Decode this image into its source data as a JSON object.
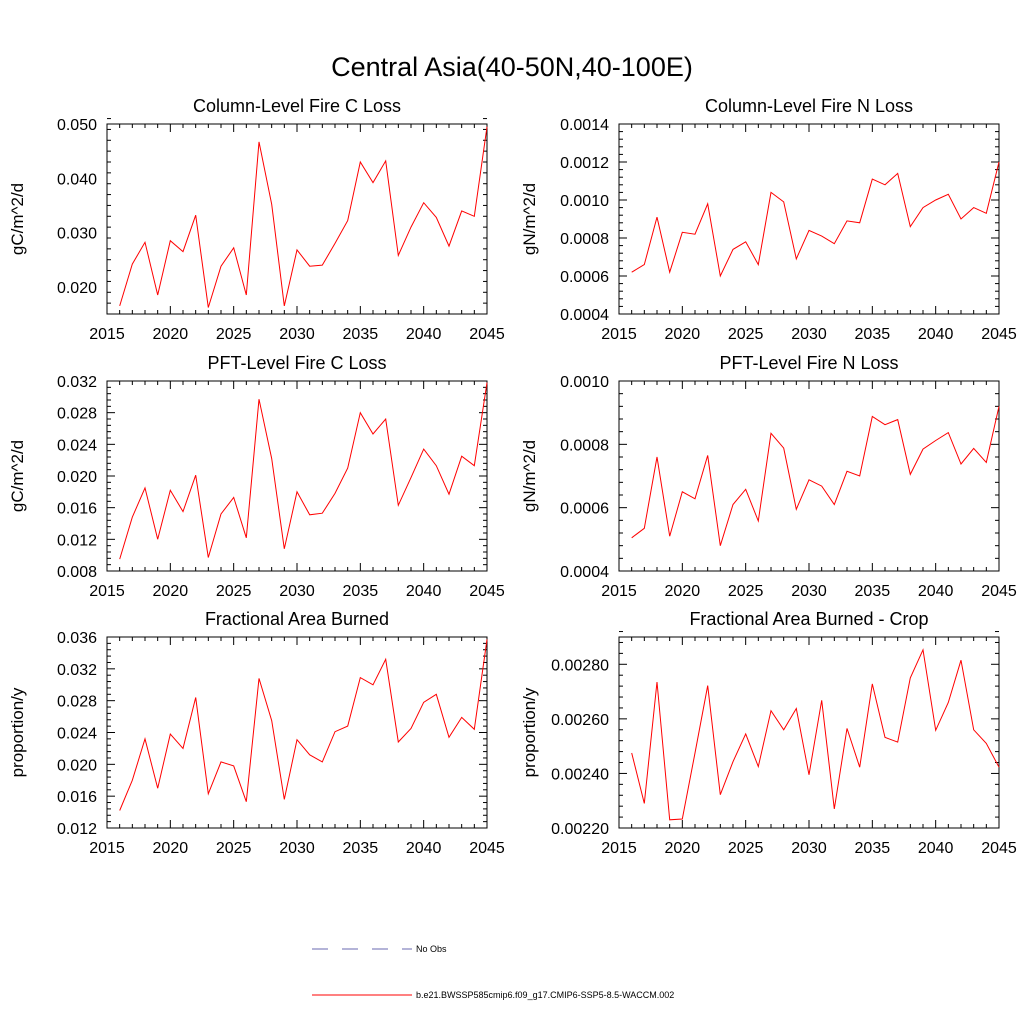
{
  "title": "Central Asia(40-50N,40-100E)",
  "colors": {
    "model_line": "#ff0000",
    "obs_line": "#6a6ab0",
    "axes": "#000000"
  },
  "legend": [
    {
      "label": "No Obs",
      "style": "dashed",
      "color": "#6a6ab0"
    },
    {
      "label": "b.e21.BWSSP585cmip6.f09_g17.CMIP6-SSP5-8.5-WACCM.002",
      "style": "solid",
      "color": "#ff0000"
    }
  ],
  "chart_data": [
    {
      "type": "line",
      "title": "Column-Level Fire C Loss",
      "ylabel": "gC/m^2/d",
      "xlabel": "",
      "xlim": [
        2015,
        2045
      ],
      "ylim": [
        0.015,
        0.05
      ],
      "xticks": [
        2015,
        2020,
        2025,
        2030,
        2035,
        2040,
        2045
      ],
      "yticks": [
        0.02,
        0.03,
        0.04,
        0.05
      ],
      "yticklabels": [
        "0.020",
        "0.030",
        "0.040",
        "0.050"
      ],
      "x": [
        2016,
        2017,
        2018,
        2019,
        2020,
        2021,
        2022,
        2023,
        2024,
        2025,
        2026,
        2027,
        2028,
        2029,
        2030,
        2031,
        2032,
        2033,
        2034,
        2035,
        2036,
        2037,
        2038,
        2039,
        2040,
        2041,
        2042,
        2043,
        2044,
        2045
      ],
      "series": [
        {
          "name": "b.e21.BWSSP585cmip6.f09_g17.CMIP6-SSP5-8.5-WACCM.002",
          "values": [
            0.0165,
            0.0242,
            0.0282,
            0.0185,
            0.0285,
            0.0265,
            0.0332,
            0.0162,
            0.0238,
            0.0272,
            0.0185,
            0.0467,
            0.0352,
            0.0165,
            0.0268,
            0.0238,
            0.024,
            0.028,
            0.0322,
            0.043,
            0.0392,
            0.0432,
            0.0258,
            0.031,
            0.0355,
            0.0328,
            0.0275,
            0.034,
            0.033,
            0.0495
          ]
        }
      ]
    },
    {
      "type": "line",
      "title": "Column-Level Fire N Loss",
      "ylabel": "gN/m^2/d",
      "xlabel": "",
      "xlim": [
        2015,
        2045
      ],
      "ylim": [
        0.0004,
        0.0014
      ],
      "xticks": [
        2015,
        2020,
        2025,
        2030,
        2035,
        2040,
        2045
      ],
      "yticks": [
        0.0004,
        0.0006,
        0.0008,
        0.001,
        0.0012,
        0.0014
      ],
      "yticklabels": [
        "0.0004",
        "0.0006",
        "0.0008",
        "0.0010",
        "0.0012",
        "0.0014"
      ],
      "x": [
        2016,
        2017,
        2018,
        2019,
        2020,
        2021,
        2022,
        2023,
        2024,
        2025,
        2026,
        2027,
        2028,
        2029,
        2030,
        2031,
        2032,
        2033,
        2034,
        2035,
        2036,
        2037,
        2038,
        2039,
        2040,
        2041,
        2042,
        2043,
        2044,
        2045
      ],
      "series": [
        {
          "name": "b.e21.BWSSP585cmip6.f09_g17.CMIP6-SSP5-8.5-WACCM.002",
          "values": [
            0.00062,
            0.00066,
            0.00091,
            0.00062,
            0.00083,
            0.00082,
            0.00098,
            0.0006,
            0.00074,
            0.00078,
            0.00066,
            0.00104,
            0.00099,
            0.00069,
            0.00084,
            0.00081,
            0.00077,
            0.00089,
            0.00088,
            0.00111,
            0.00108,
            0.00114,
            0.00086,
            0.00096,
            0.001,
            0.00103,
            0.0009,
            0.00096,
            0.00093,
            0.0012
          ]
        }
      ]
    },
    {
      "type": "line",
      "title": "PFT-Level Fire C Loss",
      "ylabel": "gC/m^2/d",
      "xlabel": "",
      "xlim": [
        2015,
        2045
      ],
      "ylim": [
        0.008,
        0.032
      ],
      "xticks": [
        2015,
        2020,
        2025,
        2030,
        2035,
        2040,
        2045
      ],
      "yticks": [
        0.008,
        0.012,
        0.016,
        0.02,
        0.024,
        0.028,
        0.032
      ],
      "yticklabels": [
        "0.008",
        "0.012",
        "0.016",
        "0.020",
        "0.024",
        "0.028",
        "0.032"
      ],
      "x": [
        2016,
        2017,
        2018,
        2019,
        2020,
        2021,
        2022,
        2023,
        2024,
        2025,
        2026,
        2027,
        2028,
        2029,
        2030,
        2031,
        2032,
        2033,
        2034,
        2035,
        2036,
        2037,
        2038,
        2039,
        2040,
        2041,
        2042,
        2043,
        2044,
        2045
      ],
      "series": [
        {
          "name": "b.e21.BWSSP585cmip6.f09_g17.CMIP6-SSP5-8.5-WACCM.002",
          "values": [
            0.0095,
            0.0148,
            0.0185,
            0.012,
            0.0182,
            0.0155,
            0.0201,
            0.0097,
            0.0152,
            0.0173,
            0.0122,
            0.0297,
            0.0222,
            0.0108,
            0.018,
            0.0151,
            0.0153,
            0.0178,
            0.021,
            0.028,
            0.0253,
            0.0272,
            0.0163,
            0.0198,
            0.0234,
            0.0213,
            0.0177,
            0.0225,
            0.0213,
            0.0318
          ]
        }
      ]
    },
    {
      "type": "line",
      "title": "PFT-Level Fire N Loss",
      "ylabel": "gN/m^2/d",
      "xlabel": "",
      "xlim": [
        2015,
        2045
      ],
      "ylim": [
        0.0004,
        0.001
      ],
      "xticks": [
        2015,
        2020,
        2025,
        2030,
        2035,
        2040,
        2045
      ],
      "yticks": [
        0.0004,
        0.0006,
        0.0008,
        0.001
      ],
      "yticklabels": [
        "0.0004",
        "0.0006",
        "0.0008",
        "0.0010"
      ],
      "x": [
        2016,
        2017,
        2018,
        2019,
        2020,
        2021,
        2022,
        2023,
        2024,
        2025,
        2026,
        2027,
        2028,
        2029,
        2030,
        2031,
        2032,
        2033,
        2034,
        2035,
        2036,
        2037,
        2038,
        2039,
        2040,
        2041,
        2042,
        2043,
        2044,
        2045
      ],
      "series": [
        {
          "name": "b.e21.BWSSP585cmip6.f09_g17.CMIP6-SSP5-8.5-WACCM.002",
          "values": [
            0.000505,
            0.000535,
            0.00076,
            0.00051,
            0.00065,
            0.000628,
            0.000765,
            0.00048,
            0.00061,
            0.000658,
            0.000558,
            0.000835,
            0.000788,
            0.000595,
            0.000688,
            0.000668,
            0.00061,
            0.000715,
            0.0007,
            0.000888,
            0.000862,
            0.000878,
            0.000705,
            0.000785,
            0.000812,
            0.000837,
            0.000738,
            0.000787,
            0.000743,
            0.00092
          ]
        }
      ]
    },
    {
      "type": "line",
      "title": "Fractional Area Burned",
      "ylabel": "proportion/y",
      "xlabel": "",
      "xlim": [
        2015,
        2045
      ],
      "ylim": [
        0.012,
        0.036
      ],
      "xticks": [
        2015,
        2020,
        2025,
        2030,
        2035,
        2040,
        2045
      ],
      "yticks": [
        0.012,
        0.016,
        0.02,
        0.024,
        0.028,
        0.032,
        0.036
      ],
      "yticklabels": [
        "0.012",
        "0.016",
        "0.020",
        "0.024",
        "0.028",
        "0.032",
        "0.036"
      ],
      "x": [
        2016,
        2017,
        2018,
        2019,
        2020,
        2021,
        2022,
        2023,
        2024,
        2025,
        2026,
        2027,
        2028,
        2029,
        2030,
        2031,
        2032,
        2033,
        2034,
        2035,
        2036,
        2037,
        2038,
        2039,
        2040,
        2041,
        2042,
        2043,
        2044,
        2045
      ],
      "series": [
        {
          "name": "b.e21.BWSSP585cmip6.f09_g17.CMIP6-SSP5-8.5-WACCM.002",
          "values": [
            0.0142,
            0.018,
            0.0232,
            0.017,
            0.0238,
            0.022,
            0.0284,
            0.0163,
            0.0203,
            0.0198,
            0.0153,
            0.0308,
            0.0255,
            0.0156,
            0.0231,
            0.0212,
            0.0203,
            0.0241,
            0.0248,
            0.0309,
            0.03,
            0.0332,
            0.0228,
            0.0245,
            0.0278,
            0.0288,
            0.0234,
            0.0259,
            0.0244,
            0.0357
          ]
        }
      ]
    },
    {
      "type": "line",
      "title": "Fractional Area Burned - Crop",
      "ylabel": "proportion/y",
      "xlabel": "",
      "xlim": [
        2015,
        2045
      ],
      "ylim": [
        0.0022,
        0.0029
      ],
      "xticks": [
        2015,
        2020,
        2025,
        2030,
        2035,
        2040,
        2045
      ],
      "yticks": [
        0.0022,
        0.0024,
        0.0026,
        0.0028
      ],
      "yticklabels": [
        "0.00220",
        "0.00240",
        "0.00260",
        "0.00280"
      ],
      "x": [
        2016,
        2017,
        2018,
        2019,
        2020,
        2021,
        2022,
        2023,
        2024,
        2025,
        2026,
        2027,
        2028,
        2029,
        2030,
        2031,
        2032,
        2033,
        2034,
        2035,
        2036,
        2037,
        2038,
        2039,
        2040,
        2041,
        2042,
        2043,
        2044,
        2045
      ],
      "series": [
        {
          "name": "b.e21.BWSSP585cmip6.f09_g17.CMIP6-SSP5-8.5-WACCM.002",
          "values": [
            0.002475,
            0.00229,
            0.002735,
            0.00223,
            0.002233,
            0.002475,
            0.002722,
            0.002322,
            0.002443,
            0.002545,
            0.002425,
            0.00263,
            0.00256,
            0.002638,
            0.002395,
            0.002668,
            0.00227,
            0.002565,
            0.002423,
            0.002728,
            0.002532,
            0.002515,
            0.00275,
            0.002853,
            0.002558,
            0.00266,
            0.002815,
            0.00256,
            0.00251,
            0.002423
          ]
        }
      ]
    }
  ]
}
